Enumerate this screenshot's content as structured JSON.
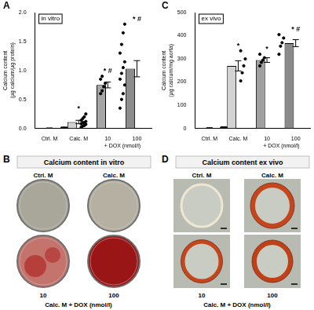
{
  "chart_data": [
    {
      "panel": "A",
      "type": "bar",
      "annotation": "in vitro",
      "y_label": [
        "Calcium content",
        "(µg calcium/µg protein)"
      ],
      "categories": [
        "Ctrl. M",
        "Calc. M",
        "10",
        "100"
      ],
      "group": {
        "label": "+ DOX (nmol/l)",
        "categories": [
          "10",
          "100"
        ]
      },
      "values": [
        0.005,
        0.11,
        0.75,
        1.03
      ],
      "errors": [
        0.003,
        0.03,
        0.05,
        0.14
      ],
      "points": [
        [
          0,
          0,
          0,
          0,
          0,
          0,
          0,
          0,
          0,
          0,
          0,
          0
        ],
        [
          0.02,
          0.04,
          0.05,
          0.07,
          0.08,
          0.1,
          0.1,
          0.12,
          0.14,
          0.17,
          0.2,
          0.25
        ],
        [
          0.6,
          0.65,
          0.72,
          0.78,
          0.85,
          0.9
        ],
        [
          0.35,
          0.5,
          0.6,
          0.75,
          0.85,
          0.95,
          1.05,
          1.15,
          1.3,
          1.45,
          1.65,
          1.8
        ]
      ],
      "significance": [
        null,
        "*",
        "* #",
        "* #"
      ],
      "colors": [
        "#ffffff",
        "#d3d3d3",
        "#a6a6a6",
        "#8c8c8c"
      ],
      "ylim": [
        0,
        2
      ],
      "yticks": [
        {
          "value": 0,
          "label": "0.0"
        },
        {
          "value": 0.5,
          "label": "0.5"
        },
        {
          "value": 1,
          "label": "1.0"
        },
        {
          "value": 1.5,
          "label": "1.5"
        },
        {
          "value": 2,
          "label": "2.0"
        }
      ],
      "grid": false
    },
    {
      "panel": "C",
      "type": "bar",
      "annotation": "ex vivo",
      "y_label": [
        "Calcium content",
        "(µg calcium/mg aorta)"
      ],
      "categories": [
        "Ctrl. M",
        "Calc. M",
        "10",
        "100"
      ],
      "group": {
        "label": "+ DOX (nmol/l)",
        "categories": [
          "10",
          "100"
        ]
      },
      "values": [
        2,
        270,
        295,
        368
      ],
      "errors": [
        1,
        22,
        10,
        15
      ],
      "points": [
        [
          2,
          2,
          2,
          2
        ],
        [
          205,
          240,
          270,
          300,
          335
        ],
        [
          270,
          285,
          295,
          305,
          320
        ],
        [
          320,
          355,
          370,
          390,
          405
        ]
      ],
      "significance": [
        null,
        "*",
        "*",
        "* #"
      ],
      "colors": [
        "#ffffff",
        "#d3d3d3",
        "#a0a0a0",
        "#8a8a8a"
      ],
      "ylim": [
        0,
        500
      ],
      "yticks": [
        0,
        100,
        200,
        300,
        400,
        500
      ],
      "grid": false
    }
  ],
  "image_panels": [
    {
      "panel": "B",
      "title": "Calcium content in vitro",
      "top_labels": [
        "Ctrl. M",
        "Calc. M"
      ],
      "bottom_labels": [
        "10",
        "100"
      ],
      "bottom_caption": "Calc. M + DOX (nmol/l)"
    },
    {
      "panel": "D",
      "title": "Calcium content ex vivo",
      "top_labels": [
        "Ctrl. M",
        "Calc. M"
      ],
      "bottom_labels": [
        "10",
        "100"
      ],
      "bottom_caption": "Calc. M + DOX (nmol/l)"
    }
  ]
}
